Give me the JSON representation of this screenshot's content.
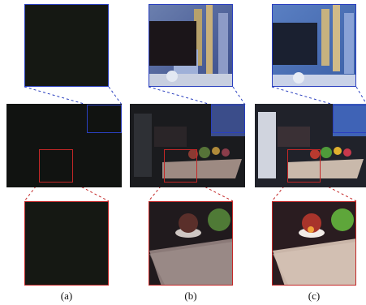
{
  "captions": {
    "a": "(a)",
    "b": "(b)",
    "c": "(c)"
  },
  "colors": {
    "zoom_top_border": "#2a3fbf",
    "zoom_bottom_border": "#c42727"
  }
}
